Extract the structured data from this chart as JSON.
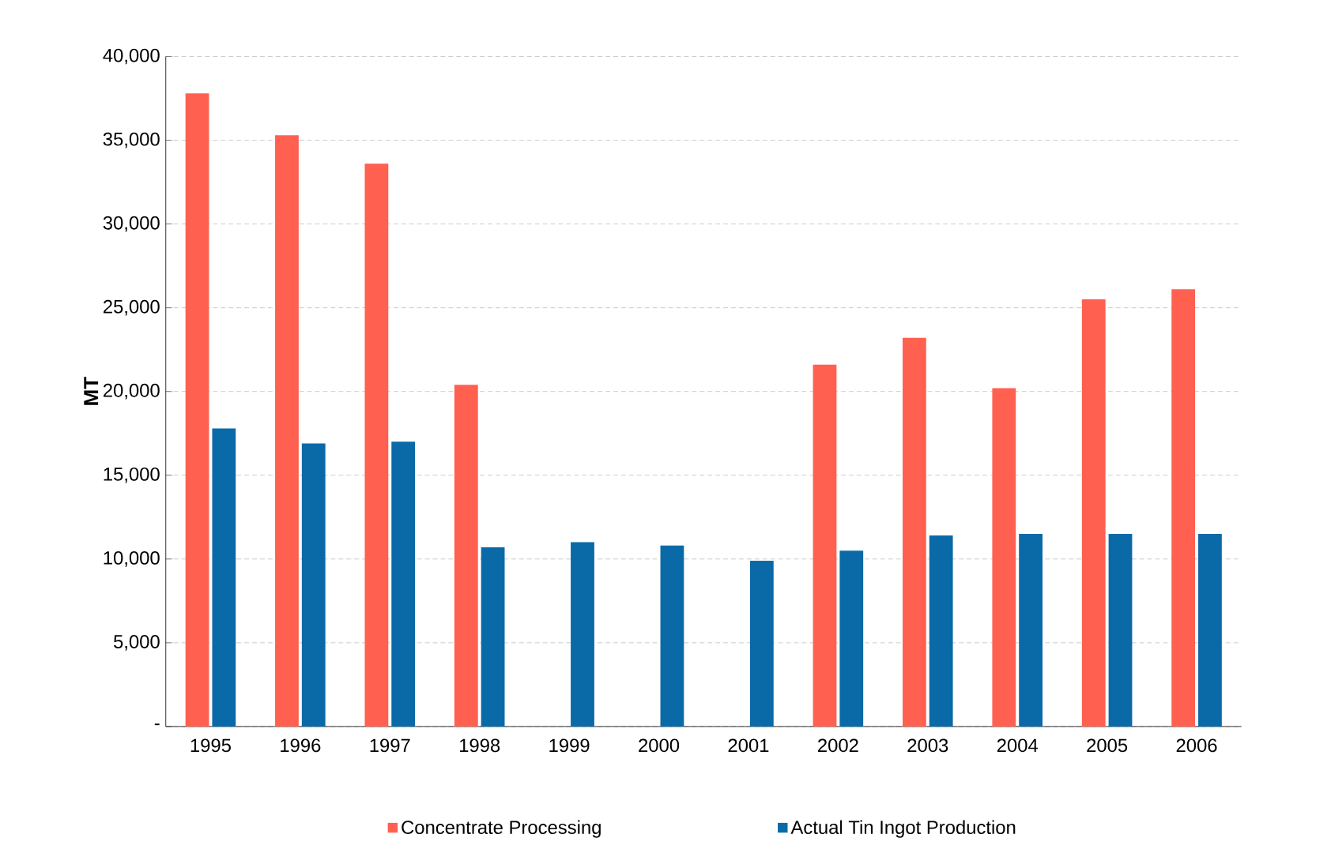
{
  "chart_data": {
    "type": "bar",
    "ylabel": "MT",
    "categories": [
      "1995",
      "1996",
      "1997",
      "1998",
      "1999",
      "2000",
      "2001",
      "2002",
      "2003",
      "2004",
      "2005",
      "2006"
    ],
    "series": [
      {
        "name": "Concentrate Processing",
        "color": "#ff6050",
        "values": [
          37800,
          35300,
          33600,
          20400,
          null,
          null,
          null,
          21600,
          23200,
          20200,
          25500,
          26100
        ]
      },
      {
        "name": "Actual Tin Ingot Production",
        "color": "#0a6aa8",
        "values": [
          17800,
          16900,
          17000,
          10700,
          11000,
          10800,
          9900,
          10500,
          11400,
          11500,
          11500,
          11500
        ]
      }
    ],
    "ylim": [
      0,
      40000
    ],
    "yticks": [
      {
        "value": 0,
        "label": "-"
      },
      {
        "value": 5000,
        "label": "5,000"
      },
      {
        "value": 10000,
        "label": "10,000"
      },
      {
        "value": 15000,
        "label": "15,000"
      },
      {
        "value": 20000,
        "label": "20,000"
      },
      {
        "value": 25000,
        "label": "25,000"
      },
      {
        "value": 30000,
        "label": "30,000"
      },
      {
        "value": 35000,
        "label": "35,000"
      },
      {
        "value": 40000,
        "label": "40,000"
      }
    ],
    "grid": "y",
    "legend": "bottom"
  }
}
